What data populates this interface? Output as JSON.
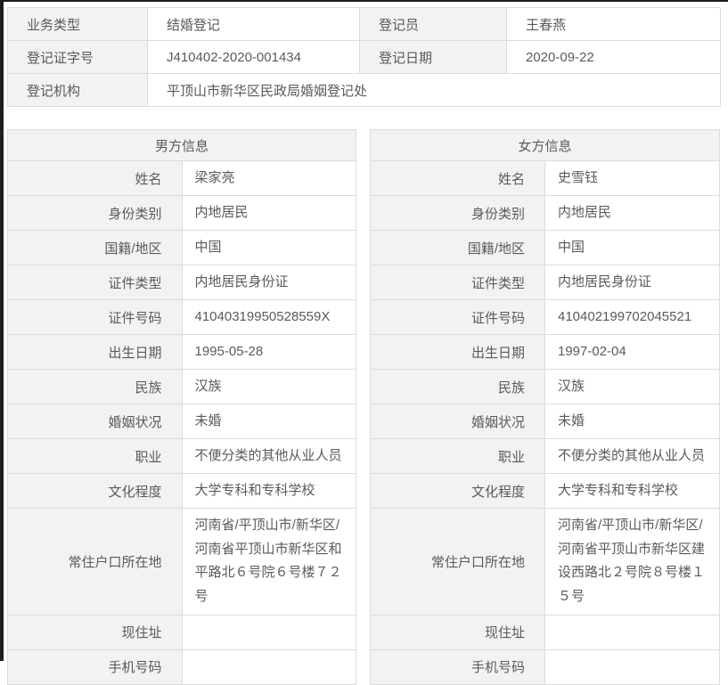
{
  "colors": {
    "label_bg": "#f2f2f2",
    "cell_bg": "#ffffff",
    "border": "#dcdcdc",
    "text": "#5a5a5a",
    "edge_dark": "#1e1e1e"
  },
  "registration": {
    "business_type_label": "业务类型",
    "business_type": "结婚登记",
    "registrar_label": "登记员",
    "registrar": "王春燕",
    "cert_no_label": "登记证字号",
    "cert_no": "J410402-2020-001434",
    "reg_date_label": "登记日期",
    "reg_date": "2020-09-22",
    "agency_label": "登记机构",
    "agency": "平顶山市新华区民政局婚姻登记处"
  },
  "male": {
    "title": "男方信息",
    "fields": [
      {
        "label": "姓名",
        "value": "梁家亮"
      },
      {
        "label": "身份类别",
        "value": "内地居民"
      },
      {
        "label": "国籍/地区",
        "value": "中国"
      },
      {
        "label": "证件类型",
        "value": "内地居民身份证"
      },
      {
        "label": "证件号码",
        "value": "41040319950528559X"
      },
      {
        "label": "出生日期",
        "value": "1995-05-28"
      },
      {
        "label": "民族",
        "value": "汉族"
      },
      {
        "label": "婚姻状况",
        "value": "未婚"
      },
      {
        "label": "职业",
        "value": "不便分类的其他从业人员"
      },
      {
        "label": "文化程度",
        "value": "大学专科和专科学校"
      },
      {
        "label": "常住户口所在地",
        "value": "河南省/平顶山市/新华区/河南省平顶山市新华区和平路北６号院６号楼７２号"
      },
      {
        "label": "现住址",
        "value": ""
      },
      {
        "label": "手机号码",
        "value": ""
      }
    ]
  },
  "female": {
    "title": "女方信息",
    "fields": [
      {
        "label": "姓名",
        "value": "史雪钰"
      },
      {
        "label": "身份类别",
        "value": "内地居民"
      },
      {
        "label": "国籍/地区",
        "value": "中国"
      },
      {
        "label": "证件类型",
        "value": "内地居民身份证"
      },
      {
        "label": "证件号码",
        "value": "410402199702045521"
      },
      {
        "label": "出生日期",
        "value": "1997-02-04"
      },
      {
        "label": "民族",
        "value": "汉族"
      },
      {
        "label": "婚姻状况",
        "value": "未婚"
      },
      {
        "label": "职业",
        "value": "不便分类的其他从业人员"
      },
      {
        "label": "文化程度",
        "value": "大学专科和专科学校"
      },
      {
        "label": "常住户口所在地",
        "value": "河南省/平顶山市/新华区/河南省平顶山市新华区建设西路北２号院８号楼１５号"
      },
      {
        "label": "现住址",
        "value": ""
      },
      {
        "label": "手机号码",
        "value": ""
      }
    ]
  }
}
